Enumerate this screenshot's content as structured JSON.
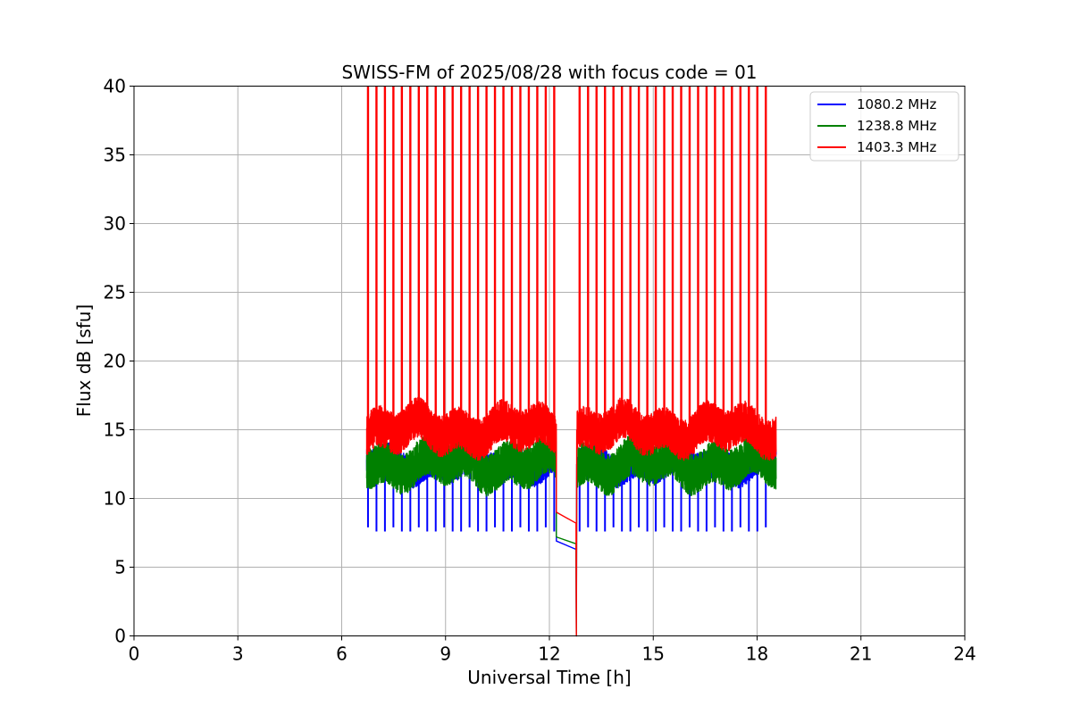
{
  "chart_data": {
    "type": "line",
    "title": "SWISS-FM of 2025/08/28 with focus code = 01",
    "xlabel": "Universal Time [h]",
    "ylabel": "Flux dB [sfu]",
    "xlim": [
      0,
      24
    ],
    "ylim": [
      0,
      40
    ],
    "xticks": [
      0,
      3,
      6,
      9,
      12,
      15,
      18,
      21,
      24
    ],
    "yticks": [
      0,
      5,
      10,
      15,
      20,
      25,
      30,
      35,
      40
    ],
    "xtick_labels": [
      "0",
      "3",
      "6",
      "9",
      "12",
      "15",
      "18",
      "21",
      "24"
    ],
    "ytick_labels": [
      "0",
      "5",
      "10",
      "15",
      "20",
      "25",
      "30",
      "35",
      "40"
    ],
    "grid": true,
    "legend_position": "top-right",
    "data_span_h": [
      6.72,
      18.55
    ],
    "gap_h": [
      12.2,
      12.8
    ],
    "series": [
      {
        "name": "1080.2 MHz",
        "color": "#0000ff",
        "baseline_range": [
          11.0,
          14.0
        ],
        "calibration_dip": 7.8,
        "gap_values": [
          6.9,
          6.3
        ]
      },
      {
        "name": "1238.8 MHz",
        "color": "#008000",
        "baseline_range": [
          10.5,
          14.5
        ],
        "gap_values": [
          7.2,
          6.7
        ]
      },
      {
        "name": "1403.3 MHz",
        "color": "#ff0000",
        "baseline_range": [
          13.0,
          17.0
        ],
        "calibration_spike": 40,
        "gap_values": [
          9.0,
          8.2
        ]
      }
    ]
  }
}
